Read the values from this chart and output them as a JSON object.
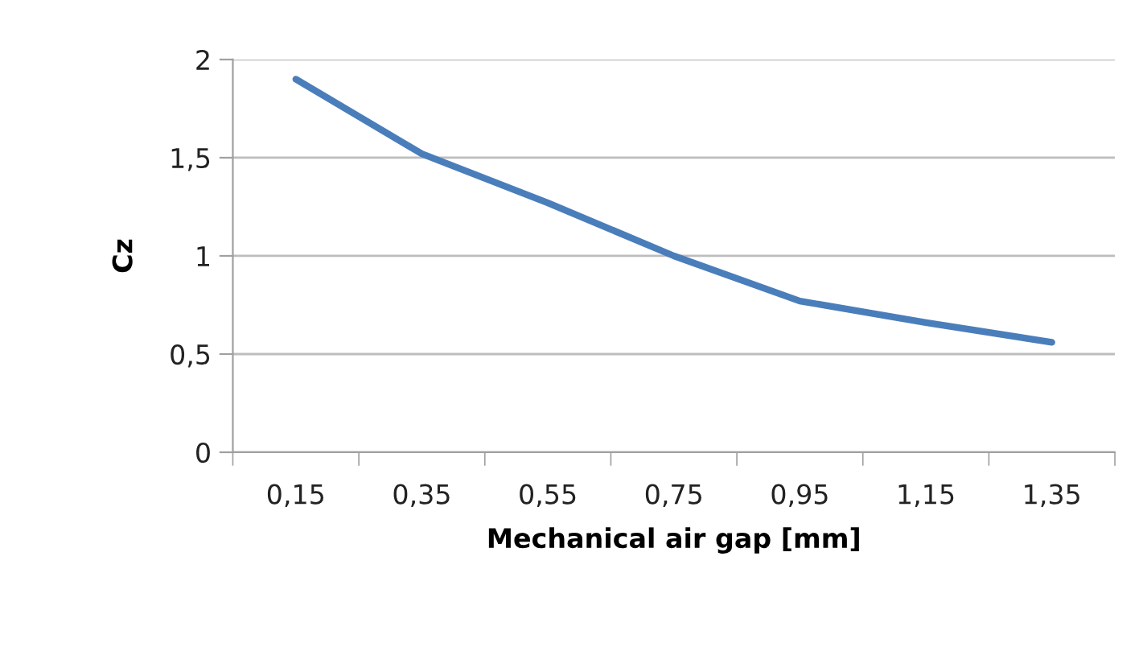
{
  "chart_data": {
    "type": "line",
    "xlabel": "Mechanical air gap [mm]",
    "ylabel": "Cz",
    "categories": [
      "0,15",
      "0,35",
      "0,55",
      "0,75",
      "0,95",
      "1,15",
      "1,35"
    ],
    "series": [
      {
        "color": "#4a7ebb",
        "values": [
          1.9,
          1.52,
          1.27,
          1.0,
          0.77,
          0.66,
          0.56
        ]
      }
    ],
    "ylim": [
      0,
      2
    ],
    "yticks": [
      0,
      {
        "value": 0.5,
        "label": "0,5"
      },
      1,
      {
        "value": 1.5,
        "label": "1,5"
      },
      2
    ],
    "grid": "y",
    "marker": "none",
    "line_style": "solid"
  }
}
